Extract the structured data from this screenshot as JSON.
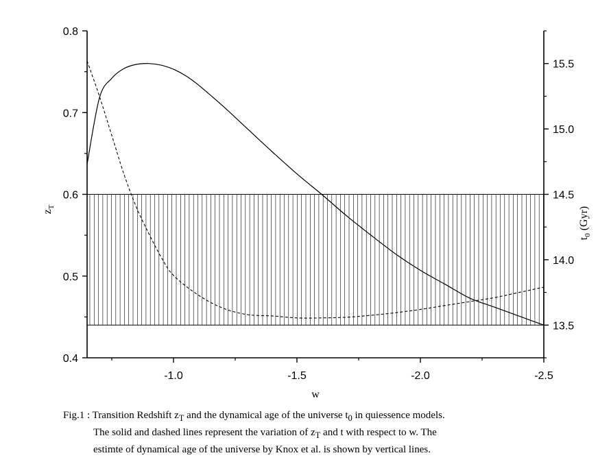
{
  "chart_data": {
    "type": "line",
    "xlabel": "w",
    "ylabel_left": {
      "base": "z",
      "sub": "T"
    },
    "ylabel_right": {
      "base": "t",
      "sub": "0",
      "rest": " (Gyr)"
    },
    "xlim": [
      -0.65,
      -2.5
    ],
    "ylim_left": [
      0.4,
      0.8
    ],
    "ylim_right": [
      13.25,
      15.75
    ],
    "x_ticks": [
      -1.0,
      -1.5,
      -2.0,
      -2.5
    ],
    "x_tick_labels": [
      "-1.0",
      "-1.5",
      "-2.0",
      "-2.5"
    ],
    "y_left_ticks": [
      0.4,
      0.5,
      0.6,
      0.7,
      0.8
    ],
    "y_left_tick_labels": [
      "0.4",
      "0.5",
      "0.6",
      "0.7",
      "0.8"
    ],
    "y_right_ticks": [
      13.5,
      14.0,
      14.5,
      15.0,
      15.5
    ],
    "y_right_tick_labels": [
      "13.5",
      "14.0",
      "14.5",
      "15.0",
      "15.5"
    ],
    "grid": false,
    "series": [
      {
        "style": "solid",
        "axis": "left",
        "x": [
          -0.65,
          -0.7,
          -0.75,
          -0.8,
          -0.85,
          -0.9,
          -0.95,
          -1.0,
          -1.05,
          -1.1,
          -1.2,
          -1.3,
          -1.4,
          -1.5,
          -1.6,
          -1.7,
          -1.8,
          -1.9,
          -2.0,
          -2.1,
          -2.2,
          -2.3,
          -2.4,
          -2.5
        ],
        "y": [
          0.637,
          0.718,
          0.742,
          0.754,
          0.759,
          0.76,
          0.758,
          0.753,
          0.745,
          0.734,
          0.708,
          0.68,
          0.652,
          0.625,
          0.6,
          0.574,
          0.55,
          0.527,
          0.507,
          0.49,
          0.473,
          0.462,
          0.451,
          0.44
        ]
      },
      {
        "style": "dashed",
        "axis": "right",
        "x": [
          -0.65,
          -0.7,
          -0.75,
          -0.8,
          -0.85,
          -0.9,
          -0.95,
          -1.0,
          -1.1,
          -1.2,
          -1.3,
          -1.4,
          -1.5,
          -1.6,
          -1.7,
          -1.8,
          -1.9,
          -2.0,
          -2.1,
          -2.2,
          -2.3,
          -2.4,
          -2.5
        ],
        "y": [
          15.52,
          15.25,
          14.95,
          14.65,
          14.4,
          14.2,
          14.02,
          13.88,
          13.73,
          13.63,
          13.58,
          13.57,
          13.555,
          13.555,
          13.56,
          13.575,
          13.595,
          13.62,
          13.65,
          13.68,
          13.71,
          13.75,
          13.79
        ]
      }
    ],
    "band": {
      "axis": "right",
      "y_range": [
        13.5,
        14.5
      ],
      "fill": "vertical lines"
    }
  },
  "caption": {
    "line1_a": "Fig.1 : Transition Redshift z",
    "line1_sub1": "T",
    "line1_b": " and the dynamical age of the universe t",
    "line1_sub2": "0",
    "line1_c": " in quiessence models.",
    "line2_a": "The solid and dashed lines represent the variation of z",
    "line2_sub": "T",
    "line2_b": " and t with respect to w.   The",
    "line3": "estimte of dynamical age of the universe by Knox et al. is shown by vertical lines."
  }
}
